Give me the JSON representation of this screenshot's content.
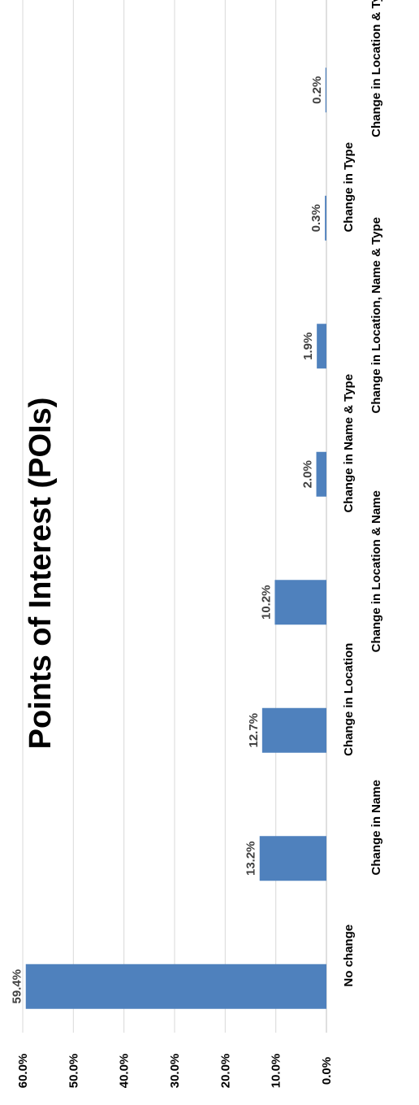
{
  "chart_data": {
    "type": "bar",
    "title": "Points of Interest (POIs)",
    "categories": [
      "No change",
      "Change in Name",
      "Change in Location",
      "Change in Location & Name",
      "Change in Name & Type",
      "Change in Location, Name & Type",
      "Change in Type",
      "Change in Location & Type"
    ],
    "values": [
      59.4,
      13.2,
      12.7,
      10.2,
      2.0,
      1.9,
      0.3,
      0.2
    ],
    "data_labels": [
      "59.4%",
      "13.2%",
      "12.7%",
      "10.2%",
      "2.0%",
      "1.9%",
      "0.3%",
      "0.2%"
    ],
    "ylim": [
      0,
      60
    ],
    "yticks": [
      0,
      10,
      20,
      30,
      40,
      50,
      60
    ],
    "ytick_labels": [
      "0.0%",
      "10.0%",
      "20.0%",
      "30.0%",
      "40.0%",
      "50.0%",
      "60.0%"
    ],
    "grid": true,
    "bar_color": "#4f81bd"
  }
}
